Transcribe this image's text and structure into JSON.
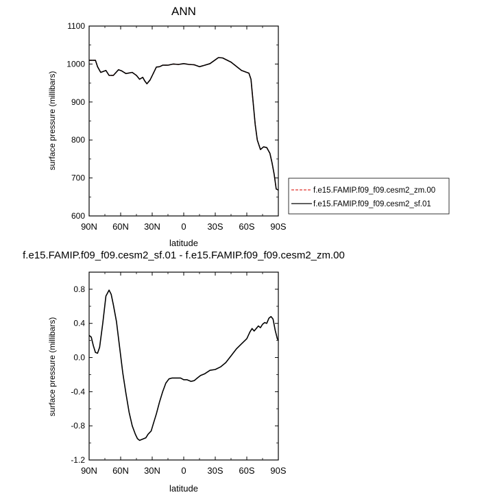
{
  "chart_data": [
    {
      "type": "line",
      "title": "ANN",
      "xlabel": "latitude",
      "ylabel": "surface pressure (millibars)",
      "x_ticks": [
        {
          "x": 90,
          "label": "90N"
        },
        {
          "x": 60,
          "label": "60N"
        },
        {
          "x": 30,
          "label": "30N"
        },
        {
          "x": 0,
          "label": "0"
        },
        {
          "x": -30,
          "label": "30S"
        },
        {
          "x": -60,
          "label": "60S"
        },
        {
          "x": -90,
          "label": "90S"
        }
      ],
      "xlim": [
        90,
        -90
      ],
      "ylim": [
        600,
        1100
      ],
      "y_ticks": [
        600,
        700,
        800,
        900,
        1000,
        1100
      ],
      "y_tick_labels": [
        "600",
        "700",
        "800",
        "900",
        "1000",
        "1100"
      ],
      "legend": {
        "placement": "right",
        "entries": [
          {
            "label": "f.e15.FAMIP.f09_f09.cesm2_zm.00",
            "color": "#e0302a",
            "dash": "dashed"
          },
          {
            "label": "f.e15.FAMIP.f09_f09.cesm2_sf.01",
            "color": "#000000",
            "dash": "solid"
          }
        ]
      },
      "series": [
        {
          "name": "f.e15.FAMIP.f09_f09.cesm2_zm.00",
          "color": "#e0302a",
          "dash": "dashed",
          "x": [
            90,
            84,
            82,
            79,
            74,
            71,
            67,
            62,
            59,
            55,
            49,
            45,
            42,
            39,
            37,
            35,
            32,
            29,
            26,
            23,
            20,
            15,
            10,
            5,
            0,
            -5,
            -10,
            -15,
            -20,
            -25,
            -30,
            -33,
            -37,
            -45,
            -55,
            -62,
            -64,
            -66,
            -68,
            -70,
            -73,
            -76,
            -79,
            -82,
            -84,
            -86,
            -88,
            -90
          ],
          "y": [
            1010,
            1010,
            993,
            978,
            983,
            970,
            970,
            985,
            982,
            975,
            978,
            970,
            960,
            965,
            955,
            948,
            958,
            975,
            992,
            993,
            997,
            997,
            1000,
            999,
            1001,
            999,
            998,
            993,
            997,
            1001,
            1011,
            1017,
            1016,
            1005,
            983,
            976,
            960,
            900,
            840,
            800,
            775,
            782,
            780,
            765,
            740,
            710,
            671,
            668
          ]
        },
        {
          "name": "f.e15.FAMIP.f09_f09.cesm2_sf.01",
          "color": "#000000",
          "dash": "solid",
          "x": [
            90,
            84,
            82,
            79,
            74,
            71,
            67,
            62,
            59,
            55,
            49,
            45,
            42,
            39,
            37,
            35,
            32,
            29,
            26,
            23,
            20,
            15,
            10,
            5,
            0,
            -5,
            -10,
            -15,
            -20,
            -25,
            -30,
            -33,
            -37,
            -45,
            -55,
            -62,
            -64,
            -66,
            -68,
            -70,
            -73,
            -76,
            -79,
            -82,
            -84,
            -86,
            -88,
            -90
          ],
          "y": [
            1010,
            1010,
            993,
            978,
            983,
            970,
            970,
            985,
            982,
            975,
            978,
            970,
            960,
            965,
            955,
            948,
            958,
            975,
            992,
            993,
            997,
            997,
            1000,
            999,
            1001,
            999,
            998,
            993,
            997,
            1001,
            1011,
            1017,
            1016,
            1005,
            983,
            976,
            960,
            900,
            840,
            800,
            775,
            782,
            780,
            765,
            740,
            710,
            671,
            668
          ]
        }
      ]
    },
    {
      "type": "line",
      "title": "f.e15.FAMIP.f09_f09.cesm2_sf.01 - f.e15.FAMIP.f09_f09.cesm2_zm.00",
      "xlabel": "latitude",
      "ylabel": "surface pressure (millibars)",
      "x_ticks": [
        {
          "x": 90,
          "label": "90N"
        },
        {
          "x": 60,
          "label": "60N"
        },
        {
          "x": 30,
          "label": "30N"
        },
        {
          "x": 0,
          "label": "0"
        },
        {
          "x": -30,
          "label": "30S"
        },
        {
          "x": -60,
          "label": "60S"
        },
        {
          "x": -90,
          "label": "90S"
        }
      ],
      "xlim": [
        90,
        -90
      ],
      "ylim": [
        -1.2,
        1.0
      ],
      "y_ticks": [
        -1.2,
        -0.8,
        -0.4,
        0.0,
        0.4,
        0.8
      ],
      "y_tick_labels": [
        "-1.2",
        "-0.8",
        "-0.4",
        "0.0",
        "0.4",
        "0.8"
      ],
      "series": [
        {
          "name": "f.e15.FAMIP.f09_f09.cesm2_sf.01 - f.e15.FAMIP.f09_f09.cesm2_zm.00",
          "color": "#000000",
          "dash": "solid",
          "x": [
            90,
            88,
            86,
            84,
            82,
            80,
            77,
            74,
            71,
            69,
            67,
            64,
            61,
            58,
            55,
            52,
            49,
            46,
            44,
            42,
            40,
            36,
            34,
            31,
            29,
            26,
            23,
            20,
            17,
            14,
            11,
            7,
            3,
            0,
            -3,
            -7,
            -10,
            -13,
            -16,
            -20,
            -25,
            -30,
            -35,
            -40,
            -45,
            -50,
            -55,
            -60,
            -63,
            -65,
            -67,
            -69,
            -71,
            -73,
            -75,
            -77,
            -79,
            -81,
            -83,
            -85,
            -87,
            -89,
            -90
          ],
          "y": [
            0.26,
            0.24,
            0.14,
            0.06,
            0.05,
            0.12,
            0.4,
            0.72,
            0.79,
            0.74,
            0.62,
            0.42,
            0.12,
            -0.18,
            -0.42,
            -0.64,
            -0.8,
            -0.9,
            -0.95,
            -0.97,
            -0.96,
            -0.94,
            -0.9,
            -0.86,
            -0.78,
            -0.66,
            -0.52,
            -0.4,
            -0.3,
            -0.25,
            -0.24,
            -0.24,
            -0.24,
            -0.26,
            -0.26,
            -0.28,
            -0.27,
            -0.24,
            -0.21,
            -0.19,
            -0.15,
            -0.14,
            -0.11,
            -0.06,
            0.02,
            0.1,
            0.16,
            0.22,
            0.3,
            0.34,
            0.31,
            0.34,
            0.37,
            0.35,
            0.39,
            0.41,
            0.4,
            0.46,
            0.48,
            0.45,
            0.32,
            0.22,
            0.2
          ]
        }
      ]
    }
  ]
}
